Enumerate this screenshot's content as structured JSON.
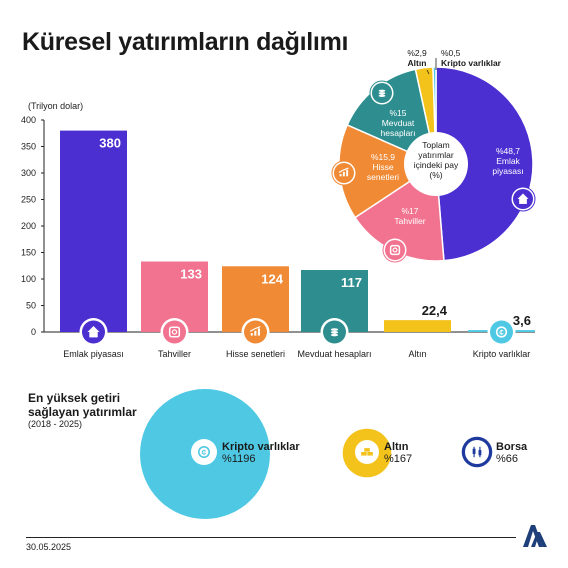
{
  "title": "Küresel yatırımların dağılımı",
  "unit_label": "(Trilyon dolar)",
  "chart_data": [
    {
      "type": "bar",
      "categories": [
        "Emlak piyasası",
        "Tahviller",
        "Hisse senetleri",
        "Mevduat hesapları",
        "Altın",
        "Kripto varlıklar"
      ],
      "values": [
        380,
        133,
        124,
        117,
        22.4,
        3.6
      ],
      "value_labels": [
        "380",
        "133",
        "124",
        "117",
        "22,4",
        "3,6"
      ],
      "colors": [
        "#4b2fd1",
        "#f2738f",
        "#f08a35",
        "#2e8e8f",
        "#f3c31c",
        "#4fc9e3"
      ],
      "icons": [
        "house-icon",
        "bond-icon",
        "stock-chart-icon",
        "coin-stack-icon",
        "",
        "crypto-coin-icon"
      ],
      "yticks": [
        0,
        50,
        100,
        150,
        200,
        250,
        300,
        350,
        400
      ],
      "ylim": [
        0,
        400
      ],
      "grid": false
    },
    {
      "type": "pie",
      "center_label": "Toplam yatırımlar içindeki pay (%)",
      "slices": [
        {
          "name": "Emlak piyasası",
          "value": 48.7,
          "label": "%48,7",
          "color": "#4b2fd1"
        },
        {
          "name": "Tahviller",
          "value": 17,
          "label": "%17",
          "color": "#f2738f"
        },
        {
          "name": "Hisse senetleri",
          "value": 15.9,
          "label": "%15,9",
          "color": "#f08a35"
        },
        {
          "name": "Mevduat hesapları",
          "value": 15,
          "label": "%15",
          "color": "#2e8e8f"
        },
        {
          "name": "Altın",
          "value": 2.9,
          "label": "%2,9",
          "color": "#f3c31c"
        },
        {
          "name": "Kripto varlıklar",
          "value": 0.5,
          "label": "%0,5",
          "color": "#4fc9e3"
        }
      ]
    },
    {
      "type": "bubble",
      "title": "En yüksek getiri sağlayan yatırımlar",
      "subtitle": "(2018 - 2025)",
      "items": [
        {
          "name": "Kripto varlıklar",
          "value": 1196,
          "label": "%1196",
          "color": "#4fc9e3",
          "icon": "crypto-coin-icon"
        },
        {
          "name": "Altın",
          "value": 167,
          "label": "%167",
          "color": "#f3c31c",
          "icon": "gold-bars-icon"
        },
        {
          "name": "Borsa",
          "value": 66,
          "label": "%66",
          "color": "#1f3a9e",
          "icon": "candlestick-icon"
        }
      ]
    }
  ],
  "footer": {
    "date": "30.05.2025"
  }
}
